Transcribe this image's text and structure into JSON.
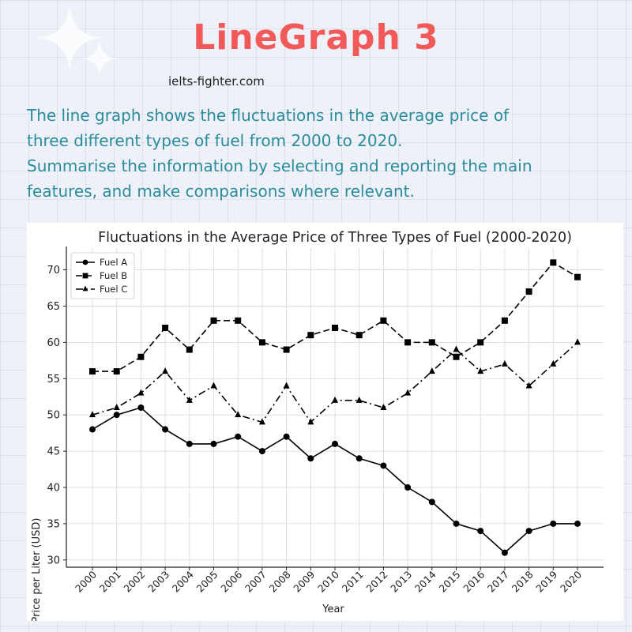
{
  "header": {
    "title": "LineGraph 3",
    "site": "ielts-fighter.com",
    "task_lines": [
      "The line graph shows the fluctuations in the average price of",
      "three different types of fuel from 2000 to 2020.",
      "Summarise the information by selecting and reporting the main",
      "features, and make comparisons where relevant."
    ]
  },
  "colors": {
    "title": "#f25a5a",
    "task_text": "#2b8c9c",
    "line": "#000000"
  },
  "chart_data": {
    "type": "line",
    "title": "Fluctuations in the Average Price of Three Types of Fuel (2000-2020)",
    "xlabel": "Year",
    "ylabel": "Price per Liter (USD)",
    "x": [
      "2000",
      "2001",
      "2002",
      "2003",
      "2004",
      "2005",
      "2006",
      "2007",
      "2008",
      "2009",
      "2010",
      "2011",
      "2012",
      "2013",
      "2014",
      "2015",
      "2016",
      "2017",
      "2018",
      "2019",
      "2020"
    ],
    "yticks": [
      30,
      35,
      40,
      45,
      50,
      55,
      60,
      65,
      70
    ],
    "ylim": [
      29,
      73
    ],
    "grid": true,
    "legend": "top-left",
    "series": [
      {
        "name": "Fuel A",
        "marker": "circle",
        "dash": "solid",
        "values": [
          48,
          50,
          51,
          48,
          46,
          46,
          47,
          45,
          47,
          44,
          46,
          44,
          43,
          40,
          38,
          35,
          34,
          31,
          34,
          35,
          35
        ]
      },
      {
        "name": "Fuel B",
        "marker": "square",
        "dash": "dashed",
        "values": [
          56,
          56,
          58,
          62,
          59,
          63,
          63,
          60,
          59,
          61,
          62,
          61,
          63,
          60,
          60,
          58,
          60,
          63,
          67,
          71,
          69
        ]
      },
      {
        "name": "Fuel C",
        "marker": "triangle",
        "dash": "dashdot",
        "values": [
          50,
          51,
          53,
          56,
          52,
          54,
          50,
          49,
          54,
          49,
          52,
          52,
          51,
          53,
          56,
          59,
          56,
          57,
          54,
          57,
          60
        ]
      }
    ]
  }
}
